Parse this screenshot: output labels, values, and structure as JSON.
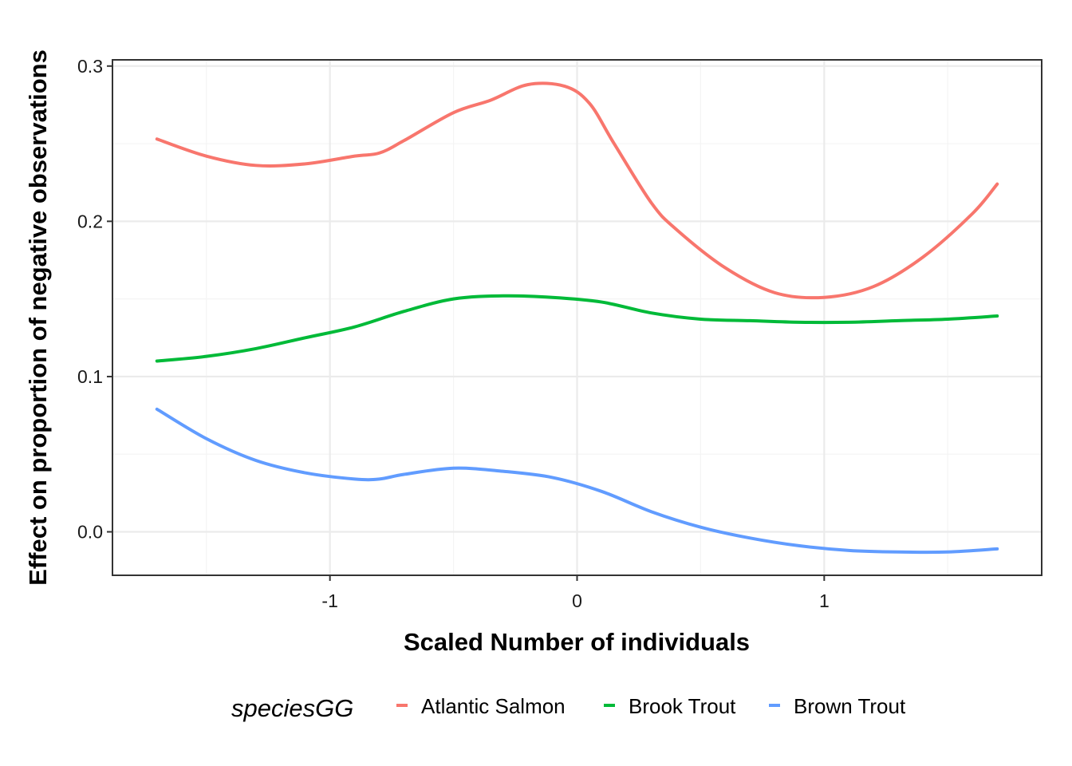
{
  "chart_data": {
    "type": "line",
    "title": "",
    "xlabel": "Scaled Number of individuals",
    "ylabel": "Effect on proportion of negative observations",
    "xlim": [
      -1.88,
      1.88
    ],
    "ylim": [
      -0.028,
      0.304
    ],
    "x_ticks": [
      -1,
      0,
      1
    ],
    "x_tick_labels": [
      "-1",
      "0",
      "1"
    ],
    "y_ticks": [
      0.0,
      0.1,
      0.2,
      0.3
    ],
    "y_tick_labels": [
      "0.0",
      "0.1",
      "0.2",
      "0.3"
    ],
    "grid": true,
    "legend": {
      "title": "speciesGG",
      "position": "bottom"
    },
    "series": [
      {
        "name": "Atlantic Salmon",
        "color": "#F8766D",
        "x": [
          -1.7,
          -1.5,
          -1.3,
          -1.1,
          -0.9,
          -0.8,
          -0.7,
          -0.5,
          -0.35,
          -0.2,
          -0.05,
          0.05,
          0.15,
          0.3,
          0.4,
          0.6,
          0.8,
          1.0,
          1.2,
          1.4,
          1.6,
          1.7
        ],
        "y": [
          0.253,
          0.242,
          0.236,
          0.237,
          0.242,
          0.244,
          0.252,
          0.27,
          0.278,
          0.288,
          0.287,
          0.276,
          0.25,
          0.212,
          0.195,
          0.17,
          0.154,
          0.151,
          0.158,
          0.177,
          0.205,
          0.224
        ]
      },
      {
        "name": "Brook Trout",
        "color": "#00BA38",
        "x": [
          -1.7,
          -1.5,
          -1.3,
          -1.1,
          -0.9,
          -0.7,
          -0.5,
          -0.3,
          -0.1,
          0.1,
          0.3,
          0.5,
          0.7,
          0.9,
          1.1,
          1.3,
          1.5,
          1.7
        ],
        "y": [
          0.11,
          0.113,
          0.118,
          0.125,
          0.132,
          0.142,
          0.15,
          0.152,
          0.151,
          0.148,
          0.141,
          0.137,
          0.136,
          0.135,
          0.135,
          0.136,
          0.137,
          0.139
        ]
      },
      {
        "name": "Brown Trout",
        "color": "#619CFF",
        "x": [
          -1.7,
          -1.5,
          -1.3,
          -1.1,
          -0.9,
          -0.8,
          -0.7,
          -0.5,
          -0.3,
          -0.1,
          0.1,
          0.3,
          0.5,
          0.7,
          0.9,
          1.1,
          1.3,
          1.5,
          1.7
        ],
        "y": [
          0.079,
          0.06,
          0.046,
          0.038,
          0.034,
          0.034,
          0.037,
          0.041,
          0.039,
          0.035,
          0.026,
          0.013,
          0.003,
          -0.004,
          -0.009,
          -0.012,
          -0.013,
          -0.013,
          -0.011
        ]
      }
    ]
  }
}
